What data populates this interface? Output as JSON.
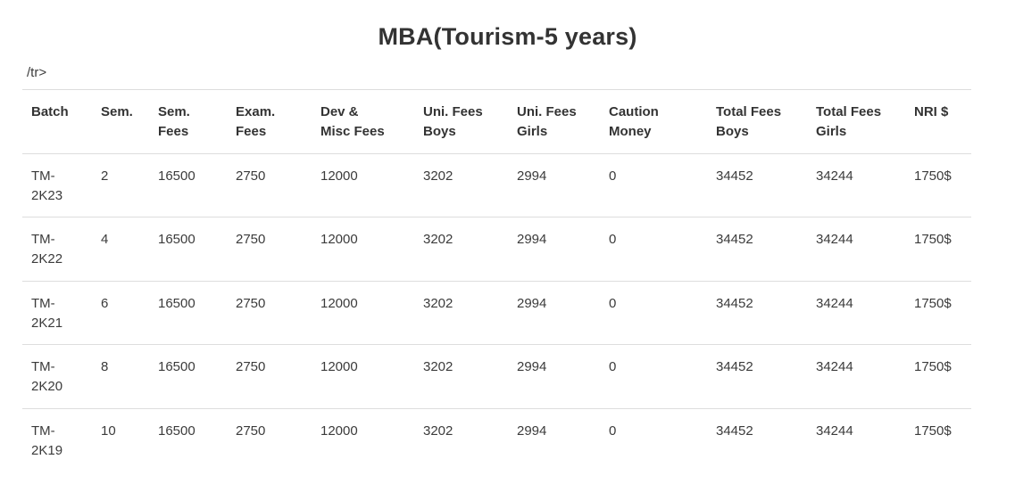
{
  "page": {
    "title": "MBA(Tourism-5 years)",
    "stray_markup": "/tr>"
  },
  "colors": {
    "text": "#3b3b3b",
    "heading": "#333333",
    "border": "#dddddd",
    "background": "#ffffff"
  },
  "table": {
    "columns": [
      "Batch",
      "Sem.",
      "Sem.\nFees",
      "Exam.\nFees",
      "Dev &\nMisc Fees",
      "Uni. Fees\nBoys",
      "Uni. Fees\nGirls",
      "Caution\nMoney",
      "Total Fees\nBoys",
      "Total Fees\nGirls",
      "NRI $"
    ],
    "rows": [
      [
        "TM-2K23",
        "2",
        "16500",
        "2750",
        "12000",
        "3202",
        "2994",
        "0",
        "34452",
        "34244",
        "1750$"
      ],
      [
        "TM-2K22",
        "4",
        "16500",
        "2750",
        "12000",
        "3202",
        "2994",
        "0",
        "34452",
        "34244",
        "1750$"
      ],
      [
        "TM-2K21",
        "6",
        "16500",
        "2750",
        "12000",
        "3202",
        "2994",
        "0",
        "34452",
        "34244",
        "1750$"
      ],
      [
        "TM-2K20",
        "8",
        "16500",
        "2750",
        "12000",
        "3202",
        "2994",
        "0",
        "34452",
        "34244",
        "1750$"
      ],
      [
        "TM-2K19",
        "10",
        "16500",
        "2750",
        "12000",
        "3202",
        "2994",
        "0",
        "34452",
        "34244",
        "1750$"
      ]
    ]
  }
}
